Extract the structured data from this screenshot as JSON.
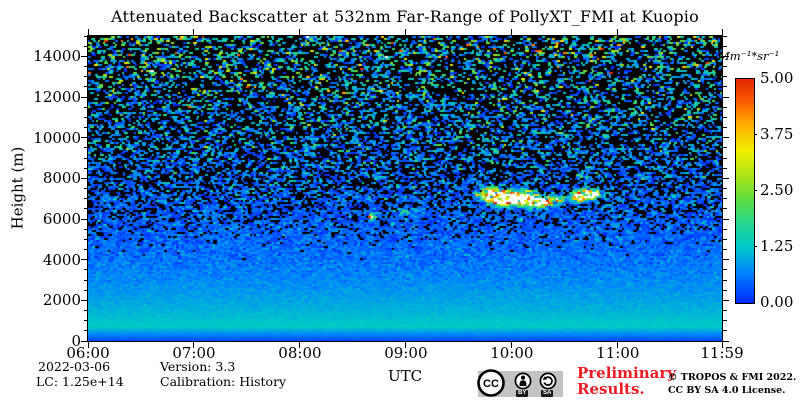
{
  "title": "Attenuated Backscatter at 532nm Far-Range of PollyXT_FMI at Kuopio",
  "footer": {
    "date": "2022-03-06",
    "lidar_constant": "LC: 1.25e+14",
    "version": "Version: 3.3",
    "calibration": "Calibration: History",
    "preliminary_line1": "Preliminary",
    "preliminary_line2": "Results.",
    "copyright_line1": "© TROPOS & FMI 2022.",
    "copyright_line2": "CC BY SA 4.0 License.",
    "license_badge": {
      "cc": "CC",
      "by": "BY",
      "sa": "SA"
    }
  },
  "colors": {
    "preliminary_red": "#ee1c25",
    "badge_gray": "#c3c3c3",
    "axis_black": "#000000"
  },
  "chart_data": {
    "type": "heatmap",
    "title": "Attenuated Backscatter at 532nm Far-Range of PollyXT_FMI at Kuopio",
    "xlabel": "UTC",
    "ylabel": "Height (m)",
    "x_ticks": [
      {
        "label": "06:00",
        "min": 0
      },
      {
        "label": "07:00",
        "min": 60
      },
      {
        "label": "08:00",
        "min": 120
      },
      {
        "label": "09:00",
        "min": 180
      },
      {
        "label": "10:00",
        "min": 240
      },
      {
        "label": "11:00",
        "min": 300
      },
      {
        "label": "11:59",
        "min": 359
      }
    ],
    "x_range_min": [
      0,
      359
    ],
    "y_ticks": [
      0,
      2000,
      4000,
      6000,
      8000,
      10000,
      12000,
      14000
    ],
    "y_minor_step_m": 500,
    "y_range_m": [
      0,
      15000
    ],
    "grid": false,
    "colorbar": {
      "unit": "Mm⁻¹*sr⁻¹",
      "ticks": [
        "5.00",
        "3.75",
        "2.50",
        "1.25",
        "0.00"
      ],
      "vmin": 0,
      "vmax": 5,
      "under_color": "#000000",
      "over_color": "#ffffff",
      "stops": [
        [
          0.0,
          "#0028ff"
        ],
        [
          0.13,
          "#0080ff"
        ],
        [
          0.25,
          "#00c8c8"
        ],
        [
          0.36,
          "#28d78c"
        ],
        [
          0.47,
          "#64dc3c"
        ],
        [
          0.58,
          "#b4e614"
        ],
        [
          0.68,
          "#f0f000"
        ],
        [
          0.8,
          "#ffaa00"
        ],
        [
          0.9,
          "#fa5a00"
        ],
        [
          1.0,
          "#e12800"
        ]
      ]
    },
    "signal_model": {
      "description": "Molecular backscatter: low in near-ground overlap zone (smooth dark-blue band 0-700 m), peak ~1.3 Mm-1sr-1 near 700 m, exponential decay with height; photon noise grows with range so above ~5 km the field becomes speckled and above ~9 km is mostly black (negative noise clipped) with multicolor speckles.",
      "overlap_ramp_top_m": 700,
      "surface_value": 0.22,
      "peak_value": 1.3,
      "decay_scale_m": 4400,
      "noise_base": 0.02,
      "noise_amp": 2.0,
      "noise_exp": 1.8,
      "noise_skew": 0.25
    },
    "features": [
      {
        "t_min": 228,
        "h_m": 7200,
        "t_sigma_min": 4,
        "h_sigma_m": 220,
        "amp": 7,
        "note": "cloud/aerosol layer start ~09:48, ~7200 m, white-red speckle"
      },
      {
        "t_min": 236,
        "h_m": 7000,
        "t_sigma_min": 4,
        "h_sigma_m": 200,
        "amp": 9,
        "note": "brightest cloud core ~09:56"
      },
      {
        "t_min": 244,
        "h_m": 7050,
        "t_sigma_min": 4,
        "h_sigma_m": 220,
        "amp": 8,
        "note": "cloud core ~10:04"
      },
      {
        "t_min": 252,
        "h_m": 6900,
        "t_sigma_min": 4,
        "h_sigma_m": 180,
        "amp": 7,
        "note": "cloud ~10:12"
      },
      {
        "t_min": 259,
        "h_m": 6850,
        "t_sigma_min": 3,
        "h_sigma_m": 150,
        "amp": 5,
        "note": "cloud tail ~10:19"
      },
      {
        "t_min": 266,
        "h_m": 6950,
        "t_sigma_min": 3,
        "h_sigma_m": 130,
        "amp": 3,
        "note": "faint tail ~10:26"
      },
      {
        "t_min": 279,
        "h_m": 7150,
        "t_sigma_min": 4,
        "h_sigma_m": 170,
        "amp": 6,
        "note": "second patch ~10:39"
      },
      {
        "t_min": 286,
        "h_m": 7250,
        "t_sigma_min": 3,
        "h_sigma_m": 140,
        "amp": 5,
        "note": "second patch end ~10:46"
      },
      {
        "t_min": 161,
        "h_m": 6100,
        "t_sigma_min": 1.5,
        "h_sigma_m": 110,
        "amp": 6,
        "note": "small bright spot ~08:41, ~6100 m"
      },
      {
        "t_min": 184,
        "h_m": 6350,
        "t_sigma_min": 5,
        "h_sigma_m": 130,
        "amp": 1.2,
        "note": "faint yellow-green patch ~09:04"
      }
    ]
  }
}
